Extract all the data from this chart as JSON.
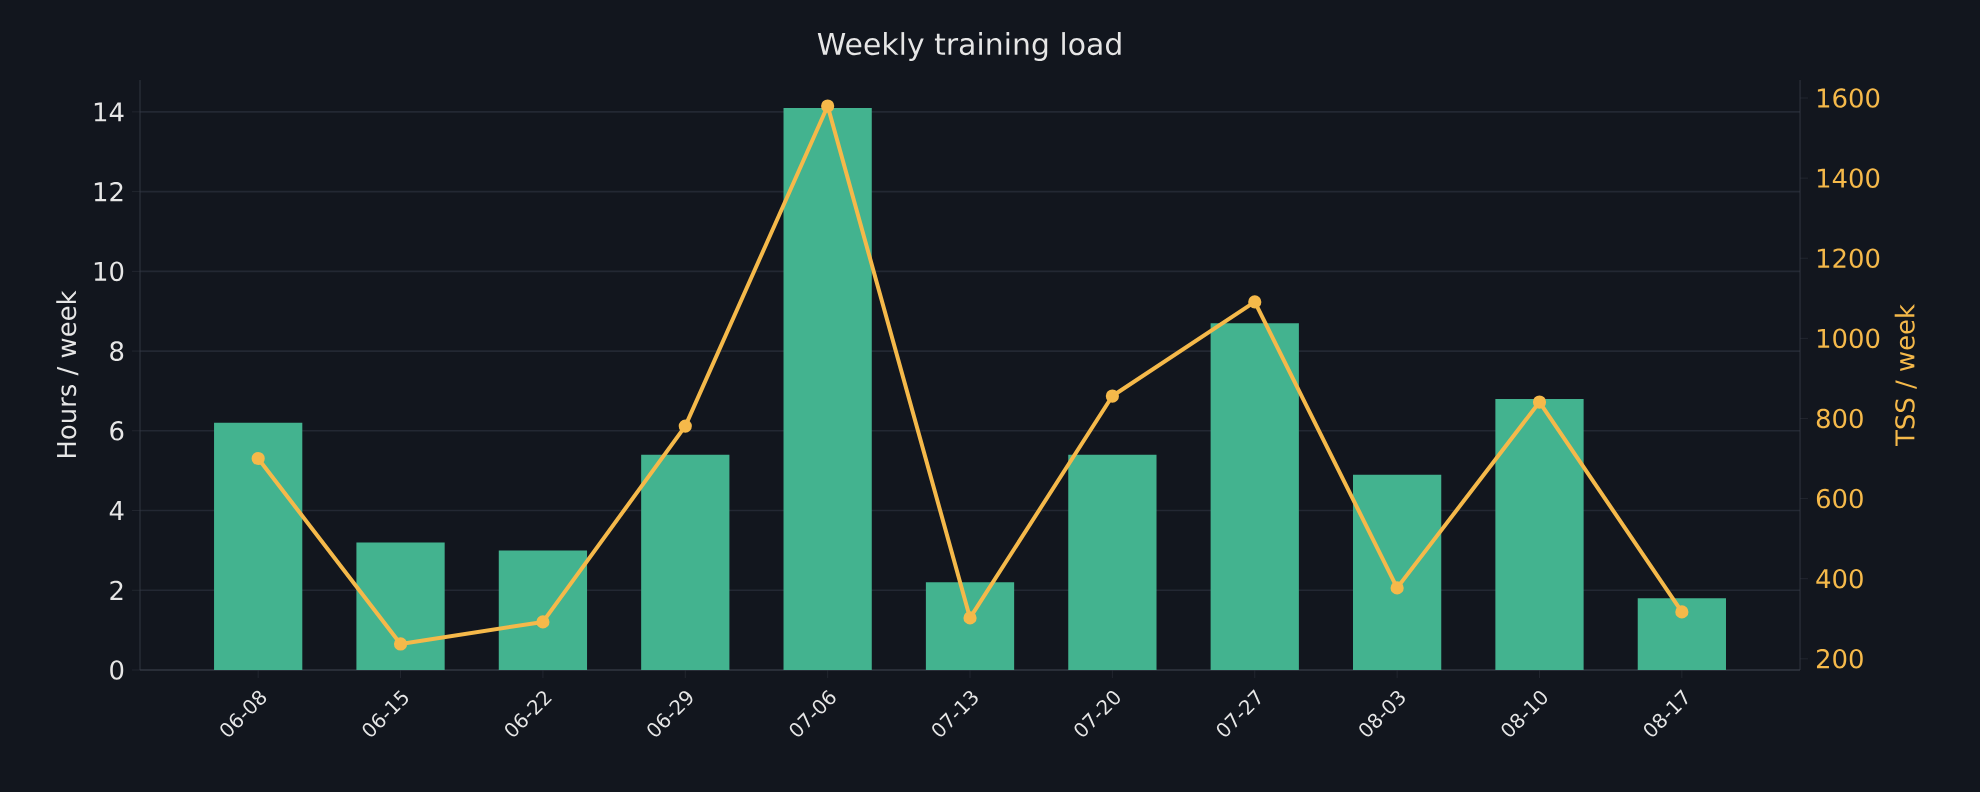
{
  "chart_data": {
    "type": "bar",
    "title": "Weekly training load",
    "ylabel": "Hours / week",
    "y2label": "TSS / week",
    "categories": [
      "06-08",
      "06-15",
      "06-22",
      "06-29",
      "07-06",
      "07-13",
      "07-20",
      "07-27",
      "08-03",
      "08-10",
      "08-17"
    ],
    "ylim": [
      0,
      14.8
    ],
    "yticks": [
      0,
      2,
      4,
      6,
      8,
      10,
      12,
      14
    ],
    "y2lim": [
      172,
      1645
    ],
    "y2ticks": [
      200,
      400,
      600,
      800,
      1000,
      1200,
      1400,
      1600
    ],
    "grid": "y",
    "series": [
      {
        "color": "#43b38f",
        "values": [
          6.2,
          3.2,
          3.0,
          5.4,
          14.1,
          2.2,
          5.4,
          8.7,
          4.9,
          6.8,
          1.8
        ]
      },
      {
        "type": "line",
        "axis": "y2",
        "color": "#f5b94a",
        "marker": "circle",
        "values": [
          700,
          237,
          292,
          781,
          1580,
          302,
          856,
          1091,
          377,
          841,
          317
        ]
      }
    ]
  }
}
